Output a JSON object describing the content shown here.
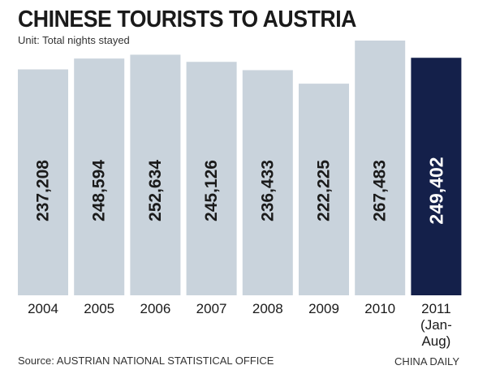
{
  "chart_data": {
    "type": "bar",
    "title": "CHINESE TOURISTS TO AUSTRIA",
    "subtitle": "Unit: Total nights stayed",
    "categories": [
      "2004",
      "2005",
      "2006",
      "2007",
      "2008",
      "2009",
      "2010",
      "2011 (Jan-Aug)"
    ],
    "category_lines": [
      [
        "2004"
      ],
      [
        "2005"
      ],
      [
        "2006"
      ],
      [
        "2007"
      ],
      [
        "2008"
      ],
      [
        "2009"
      ],
      [
        "2010"
      ],
      [
        "2011",
        "(Jan-",
        "Aug)"
      ]
    ],
    "values": [
      237208,
      248594,
      252634,
      245126,
      236433,
      222225,
      267483,
      249402
    ],
    "value_labels": [
      "237,208",
      "248,594",
      "252,634",
      "245,126",
      "236,433",
      "222,225",
      "267,483",
      "249,402"
    ],
    "ylim": [
      0,
      267483
    ],
    "grid": false,
    "colors": {
      "default": "#c9d3dc",
      "highlight": "#14204a",
      "label_default": "#1a1a1a",
      "label_highlight": "#ffffff"
    },
    "highlight_index": 7
  },
  "footer": {
    "source": "Source: AUSTRIAN NATIONAL STATISTICAL OFFICE",
    "credit": "CHINA DAILY"
  }
}
